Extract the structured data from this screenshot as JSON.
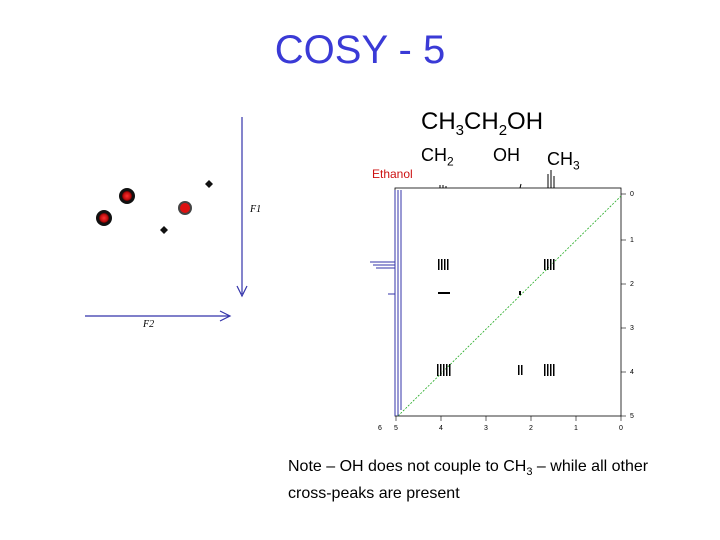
{
  "title": "COSY - 5",
  "formula": {
    "p1": "CH",
    "s1": "3",
    "p2": "CH",
    "s2": "2",
    "p3": "OH"
  },
  "peak_labels": {
    "ch2": {
      "text": "CH",
      "sub": "2"
    },
    "oh": {
      "text": "OH"
    },
    "ch3": {
      "text": "CH",
      "sub": "3"
    }
  },
  "schematic": {
    "axis_f1": "F1",
    "axis_f2": "F2"
  },
  "spectrum": {
    "label": "Ethanol",
    "x_ticks": [
      "6",
      "5",
      "4",
      "3",
      "2",
      "1",
      "0"
    ],
    "y_ticks": [
      "0",
      "1",
      "2",
      "3",
      "4",
      "5"
    ],
    "diagonal_color": "#22aa22"
  },
  "note": {
    "part1": "Note – OH does not couple to CH",
    "sub": "3",
    "part2": " – while all other cross-peaks are present"
  }
}
